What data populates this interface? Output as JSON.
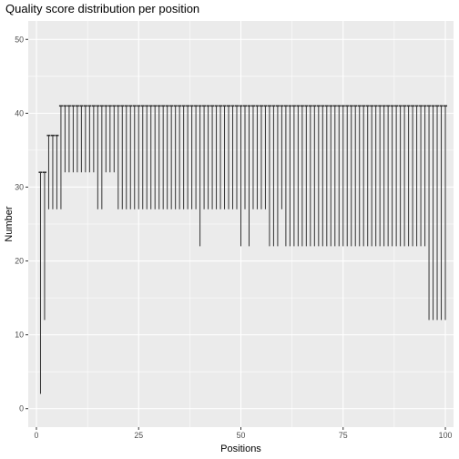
{
  "chart_data": {
    "type": "errorbar",
    "title": "Quality score distribution per position",
    "xlabel": "Positions",
    "ylabel": "Number",
    "xlim": [
      -2,
      102
    ],
    "ylim": [
      -2.5,
      52.5
    ],
    "x_ticks": [
      0,
      25,
      50,
      75,
      100
    ],
    "y_ticks": [
      0,
      10,
      20,
      30,
      40,
      50
    ],
    "grid": true,
    "legend": "none",
    "colors": {
      "panel": "#ebebeb",
      "grid": "#ffffff",
      "bars": "#333333"
    },
    "series": [
      {
        "x": [
          1,
          2,
          3,
          4,
          5,
          6,
          7,
          8,
          9,
          10,
          11,
          12,
          13,
          14,
          15,
          16,
          17,
          18,
          19,
          20,
          21,
          22,
          23,
          24,
          25,
          26,
          27,
          28,
          29,
          30,
          31,
          32,
          33,
          34,
          35,
          36,
          37,
          38,
          39,
          40,
          41,
          42,
          43,
          44,
          45,
          46,
          47,
          48,
          49,
          50,
          51,
          52,
          53,
          54,
          55,
          56,
          57,
          58,
          59,
          60,
          61,
          62,
          63,
          64,
          65,
          66,
          67,
          68,
          69,
          70,
          71,
          72,
          73,
          74,
          75,
          76,
          77,
          78,
          79,
          80,
          81,
          82,
          83,
          84,
          85,
          86,
          87,
          88,
          89,
          90,
          91,
          92,
          93,
          94,
          95,
          96,
          97,
          98,
          99,
          100
        ],
        "ymin": [
          2,
          12,
          27,
          27,
          27,
          27,
          32,
          32,
          32,
          32,
          32,
          32,
          32,
          32,
          27,
          27,
          32,
          32,
          32,
          27,
          27,
          27,
          27,
          27,
          27,
          27,
          27,
          27,
          27,
          27,
          27,
          27,
          27,
          27,
          27,
          27,
          27,
          27,
          27,
          22,
          27,
          27,
          27,
          27,
          27,
          27,
          27,
          27,
          27,
          22,
          27,
          22,
          27,
          27,
          27,
          27,
          22,
          22,
          22,
          27,
          22,
          22,
          22,
          22,
          22,
          22,
          22,
          22,
          22,
          22,
          22,
          22,
          22,
          22,
          22,
          22,
          22,
          22,
          22,
          22,
          22,
          22,
          22,
          22,
          22,
          22,
          22,
          22,
          22,
          22,
          22,
          22,
          22,
          22,
          22,
          12,
          12,
          12,
          12,
          12
        ],
        "ymax": [
          32,
          32,
          37,
          37,
          37,
          41,
          41,
          41,
          41,
          41,
          41,
          41,
          41,
          41,
          41,
          41,
          41,
          41,
          41,
          41,
          41,
          41,
          41,
          41,
          41,
          41,
          41,
          41,
          41,
          41,
          41,
          41,
          41,
          41,
          41,
          41,
          41,
          41,
          41,
          41,
          41,
          41,
          41,
          41,
          41,
          41,
          41,
          41,
          41,
          41,
          41,
          41,
          41,
          41,
          41,
          41,
          41,
          41,
          41,
          41,
          41,
          41,
          41,
          41,
          41,
          41,
          41,
          41,
          41,
          41,
          41,
          41,
          41,
          41,
          41,
          41,
          41,
          41,
          41,
          41,
          41,
          41,
          41,
          41,
          41,
          41,
          41,
          41,
          41,
          41,
          41,
          41,
          41,
          41,
          41,
          41,
          41,
          41,
          41,
          41
        ]
      }
    ]
  }
}
